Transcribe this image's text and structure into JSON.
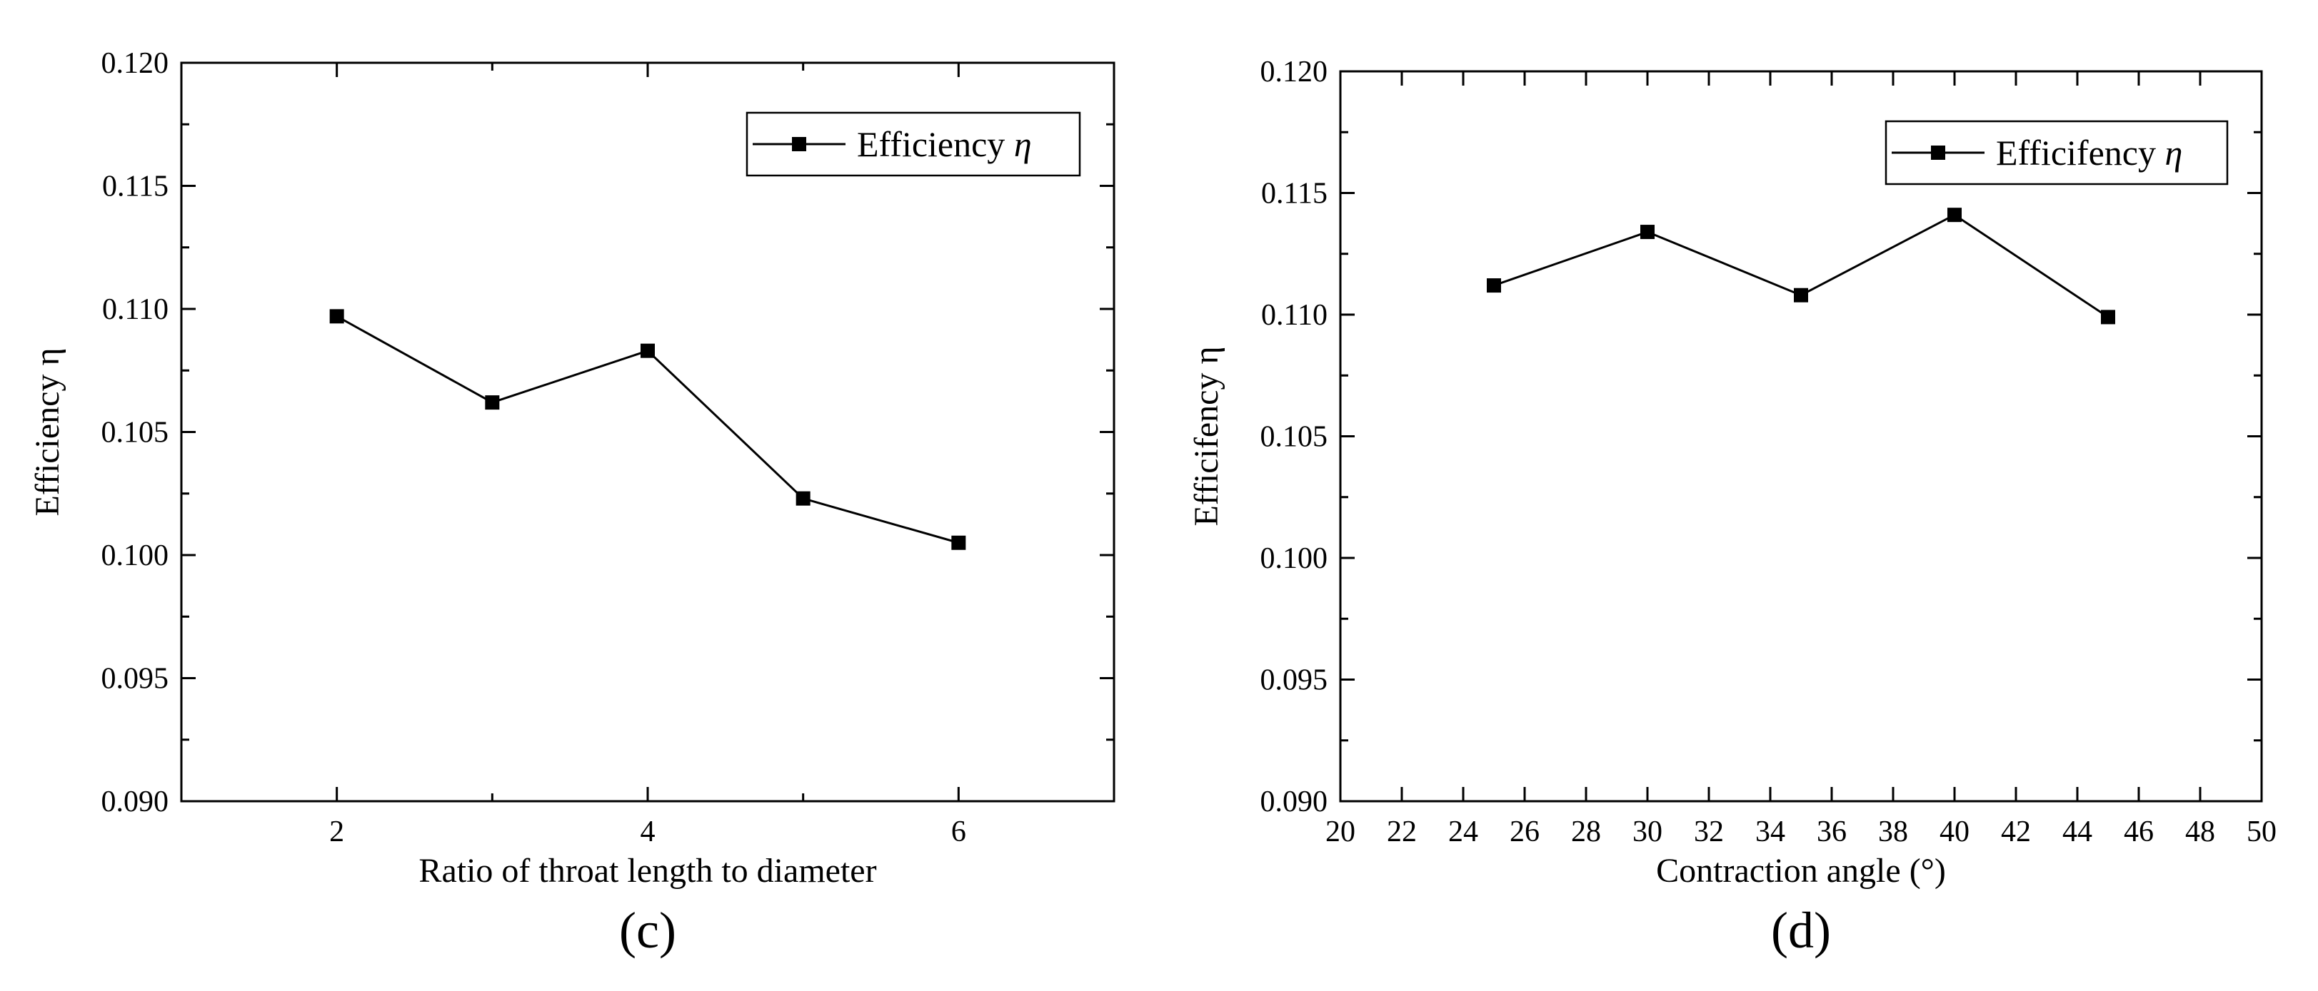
{
  "chart_data": [
    {
      "type": "line",
      "panel_label": "(c)",
      "title": "",
      "xlabel": "Ratio of throat length to diameter",
      "ylabel": "Efficiency η",
      "xlim": [
        1,
        7
      ],
      "ylim": [
        0.09,
        0.12
      ],
      "xticks": [
        2,
        4,
        6
      ],
      "xtick_labels": [
        "2",
        "4",
        "6"
      ],
      "xminor_ticks": [
        1,
        3,
        5,
        7
      ],
      "yticks": [
        0.09,
        0.095,
        0.1,
        0.105,
        0.11,
        0.115,
        0.12
      ],
      "ytick_labels": [
        "0.090",
        "0.095",
        "0.100",
        "0.105",
        "0.110",
        "0.115",
        "0.120"
      ],
      "grid": false,
      "legend": {
        "position": "top-right",
        "label": "Efficiency",
        "symbol": "η"
      },
      "series": [
        {
          "name": "Efficiency η",
          "marker": "square",
          "color": "#000000",
          "x": [
            2,
            3,
            4,
            5,
            6
          ],
          "y": [
            0.1097,
            0.1062,
            0.1083,
            0.1023,
            0.1005
          ]
        }
      ]
    },
    {
      "type": "line",
      "panel_label": "(d)",
      "title": "",
      "xlabel": "Contraction angle (°)",
      "ylabel": "Efficifency η",
      "xlim": [
        20,
        50
      ],
      "ylim": [
        0.09,
        0.12
      ],
      "xticks": [
        20,
        22,
        24,
        26,
        28,
        30,
        32,
        34,
        36,
        38,
        40,
        42,
        44,
        46,
        48,
        50
      ],
      "xtick_labels": [
        "20",
        "22",
        "24",
        "26",
        "28",
        "30",
        "32",
        "34",
        "36",
        "38",
        "40",
        "42",
        "44",
        "46",
        "48",
        "50"
      ],
      "xminor_ticks": [],
      "yticks": [
        0.09,
        0.095,
        0.1,
        0.105,
        0.11,
        0.115,
        0.12
      ],
      "ytick_labels": [
        "0.090",
        "0.095",
        "0.100",
        "0.105",
        "0.110",
        "0.115",
        "0.120"
      ],
      "grid": false,
      "legend": {
        "position": "top-right",
        "label": "Efficifency",
        "symbol": "η"
      },
      "series": [
        {
          "name": "Efficifency η",
          "marker": "square",
          "color": "#000000",
          "x": [
            25,
            30,
            35,
            40,
            45
          ],
          "y": [
            0.1112,
            0.1134,
            0.1108,
            0.1141,
            0.1099
          ]
        }
      ]
    }
  ]
}
